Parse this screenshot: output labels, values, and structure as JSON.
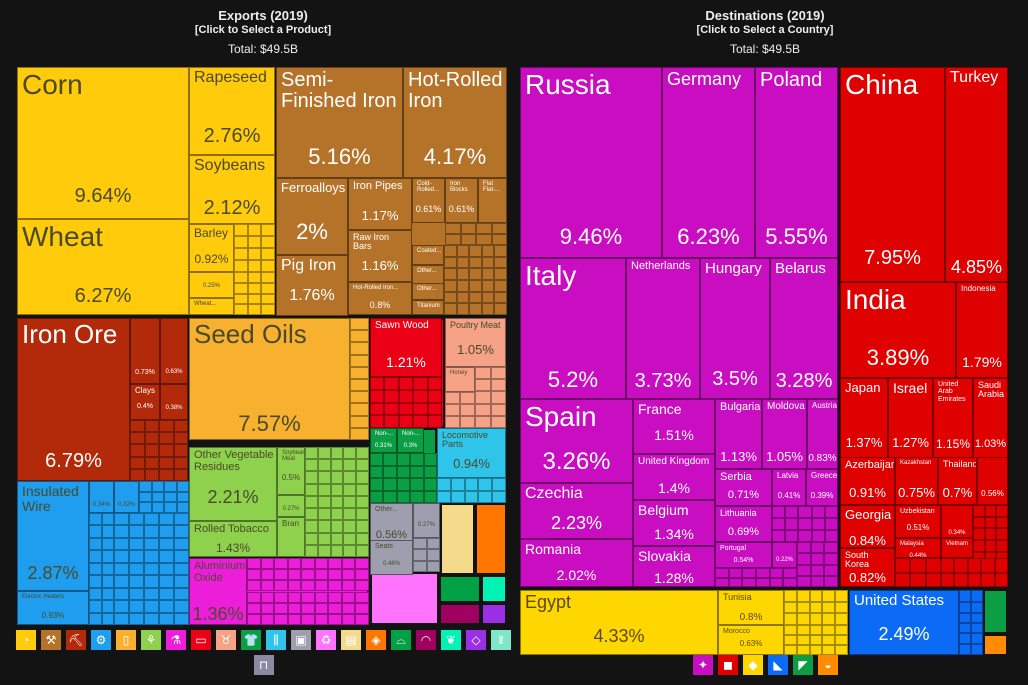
{
  "exports_panel": {
    "title": "Exports (2019)",
    "subtitle": "[Click to Select a Product]",
    "total": "Total: $49.5B"
  },
  "destinations_panel": {
    "title": "Destinations (2019)",
    "subtitle": "[Click to Select a Country]",
    "total": "Total: $49.5B"
  },
  "chart_data": [
    {
      "type": "treemap",
      "title": "Exports (2019)",
      "total": "$49.5B",
      "items": [
        {
          "name": "Corn",
          "value": 9.64,
          "group": "Vegetable Products",
          "color": "#FFCB0A"
        },
        {
          "name": "Wheat",
          "value": 6.27,
          "group": "Vegetable Products",
          "color": "#FFCB0A"
        },
        {
          "name": "Rapeseed",
          "value": 2.76,
          "group": "Vegetable Products",
          "color": "#FFCB0A"
        },
        {
          "name": "Soybeans",
          "value": 2.12,
          "group": "Vegetable Products",
          "color": "#FFCB0A"
        },
        {
          "name": "Barley",
          "value": 0.92,
          "group": "Vegetable Products",
          "color": "#FFCB0A"
        },
        {
          "name": "",
          "value": 0.25,
          "group": "Vegetable Products",
          "color": "#FFCB0A"
        },
        {
          "name": "Wheat...",
          "value": null,
          "group": "Vegetable Products",
          "color": "#FFCB0A"
        },
        {
          "name": "Semi-Finished Iron",
          "value": 5.16,
          "group": "Metals",
          "color": "#B5732A"
        },
        {
          "name": "Hot-Rolled Iron",
          "value": 4.17,
          "group": "Metals",
          "color": "#B5732A"
        },
        {
          "name": "Ferroalloys",
          "value": 2,
          "group": "Metals",
          "color": "#B5732A"
        },
        {
          "name": "Pig Iron",
          "value": 1.76,
          "group": "Metals",
          "color": "#B5732A"
        },
        {
          "name": "Iron Pipes",
          "value": 1.17,
          "group": "Metals",
          "color": "#B5732A"
        },
        {
          "name": "Raw Iron Bars",
          "value": 1.16,
          "group": "Metals",
          "color": "#B5732A"
        },
        {
          "name": "Hot-Rolled Iron...",
          "value": 0.8,
          "group": "Metals",
          "color": "#B5732A"
        },
        {
          "name": "Cold-Rolled...",
          "value": 0.61,
          "group": "Metals",
          "color": "#B5732A"
        },
        {
          "name": "Iron Blocks",
          "value": 0.61,
          "group": "Metals",
          "color": "#B5732A"
        },
        {
          "name": "Flat Flat-...",
          "value": null,
          "group": "Metals",
          "color": "#B5732A"
        },
        {
          "name": "Coated...",
          "value": null,
          "group": "Metals",
          "color": "#B5732A"
        },
        {
          "name": "Other...",
          "value": null,
          "group": "Metals",
          "color": "#B5732A"
        },
        {
          "name": "Other...",
          "value": null,
          "group": "Metals",
          "color": "#B5732A"
        },
        {
          "name": "Titanium",
          "value": null,
          "group": "Metals",
          "color": "#B5732A"
        },
        {
          "name": "Iron Ore",
          "value": 6.79,
          "group": "Mineral Products",
          "color": "#B22A0A"
        },
        {
          "name": "",
          "value": 0.73,
          "group": "Mineral Products",
          "color": "#B22A0A"
        },
        {
          "name": "",
          "value": 0.63,
          "group": "Mineral Products",
          "color": "#B22A0A"
        },
        {
          "name": "Clays",
          "value": 0.4,
          "group": "Mineral Products",
          "color": "#B22A0A"
        },
        {
          "name": "",
          "value": 0.38,
          "group": "Mineral Products",
          "color": "#B22A0A"
        },
        {
          "name": "Seed Oils",
          "value": 7.57,
          "group": "Animal and Vegetable Bi-Products",
          "color": "#F7B12F"
        },
        {
          "name": "Other Vegetable Residues",
          "value": 2.21,
          "group": "Foodstuffs",
          "color": "#8ED14C"
        },
        {
          "name": "Rolled Tobacco",
          "value": 1.43,
          "group": "Foodstuffs",
          "color": "#8ED14C"
        },
        {
          "name": "Soybean Meal",
          "value": 0.5,
          "group": "Foodstuffs",
          "color": "#8ED14C"
        },
        {
          "name": "",
          "value": 0.27,
          "group": "Foodstuffs",
          "color": "#8ED14C"
        },
        {
          "name": "Bran",
          "value": null,
          "group": "Foodstuffs",
          "color": "#8ED14C"
        },
        {
          "name": "Insulated Wire",
          "value": 2.87,
          "group": "Machines",
          "color": "#1F9EF0"
        },
        {
          "name": "Electric Heaters",
          "value": 0.93,
          "group": "Machines",
          "color": "#1F9EF0"
        },
        {
          "name": "",
          "value": 0.34,
          "group": "Machines",
          "color": "#1F9EF0"
        },
        {
          "name": "",
          "value": 0.32,
          "group": "Machines",
          "color": "#1F9EF0"
        },
        {
          "name": "Sawn Wood",
          "value": 1.21,
          "group": "Wood Products",
          "color": "#EC0016"
        },
        {
          "name": "Poultry Meat",
          "value": 1.05,
          "group": "Animal Products",
          "color": "#F6A287"
        },
        {
          "name": "Honey",
          "value": null,
          "group": "Animal Products",
          "color": "#F6A287"
        },
        {
          "name": "Locomotive Parts",
          "value": 0.94,
          "group": "Transportation",
          "color": "#2FC5EB"
        },
        {
          "name": "Non-...",
          "value": 0.31,
          "group": "Textiles",
          "color": "#0B9E45"
        },
        {
          "name": "Non-...",
          "value": 0.3,
          "group": "Textiles",
          "color": "#0B9E45"
        },
        {
          "name": "Aluminium Oxide",
          "value": 1.36,
          "group": "Chemical Products",
          "color": "#ED1ED9"
        },
        {
          "name": "Other...",
          "value": 0.56,
          "group": "Miscellaneous",
          "color": "#9E9EAE"
        },
        {
          "name": "Seats",
          "value": 0.48,
          "group": "Miscellaneous",
          "color": "#9E9EAE"
        },
        {
          "name": "",
          "value": 0.27,
          "group": "Miscellaneous",
          "color": "#9E9EAE"
        }
      ]
    },
    {
      "type": "treemap",
      "title": "Destinations (2019)",
      "total": "$49.5B",
      "items": [
        {
          "name": "Russia",
          "value": 9.46,
          "group": "Europe",
          "color": "#C90DC0"
        },
        {
          "name": "Germany",
          "value": 6.23,
          "group": "Europe",
          "color": "#C90DC0"
        },
        {
          "name": "Poland",
          "value": 5.55,
          "group": "Europe",
          "color": "#C90DC0"
        },
        {
          "name": "Italy",
          "value": 5.2,
          "group": "Europe",
          "color": "#C90DC0"
        },
        {
          "name": "Netherlands",
          "value": 3.73,
          "group": "Europe",
          "color": "#C90DC0"
        },
        {
          "name": "Hungary",
          "value": 3.5,
          "group": "Europe",
          "color": "#C90DC0"
        },
        {
          "name": "Belarus",
          "value": 3.28,
          "group": "Europe",
          "color": "#C90DC0"
        },
        {
          "name": "Spain",
          "value": 3.26,
          "group": "Europe",
          "color": "#C90DC0"
        },
        {
          "name": "Czechia",
          "value": 2.23,
          "group": "Europe",
          "color": "#C90DC0"
        },
        {
          "name": "Romania",
          "value": 2.02,
          "group": "Europe",
          "color": "#C90DC0"
        },
        {
          "name": "France",
          "value": 1.51,
          "group": "Europe",
          "color": "#C90DC0"
        },
        {
          "name": "United Kingdom",
          "value": 1.4,
          "group": "Europe",
          "color": "#C90DC0"
        },
        {
          "name": "Belgium",
          "value": 1.34,
          "group": "Europe",
          "color": "#C90DC0"
        },
        {
          "name": "Slovakia",
          "value": 1.28,
          "group": "Europe",
          "color": "#C90DC0"
        },
        {
          "name": "Bulgaria",
          "value": 1.13,
          "group": "Europe",
          "color": "#C90DC0"
        },
        {
          "name": "Moldova",
          "value": 1.05,
          "group": "Europe",
          "color": "#C90DC0"
        },
        {
          "name": "Austria",
          "value": 0.83,
          "group": "Europe",
          "color": "#C90DC0"
        },
        {
          "name": "Serbia",
          "value": 0.71,
          "group": "Europe",
          "color": "#C90DC0"
        },
        {
          "name": "Latvia",
          "value": 0.41,
          "group": "Europe",
          "color": "#C90DC0"
        },
        {
          "name": "Greece",
          "value": 0.39,
          "group": "Europe",
          "color": "#C90DC0"
        },
        {
          "name": "Lithuania",
          "value": 0.69,
          "group": "Europe",
          "color": "#C90DC0"
        },
        {
          "name": "Portugal",
          "value": 0.54,
          "group": "Europe",
          "color": "#C90DC0"
        },
        {
          "name": "",
          "value": 0.22,
          "group": "Europe",
          "color": "#C90DC0"
        },
        {
          "name": "China",
          "value": 7.95,
          "group": "Asia",
          "color": "#DF0000"
        },
        {
          "name": "Turkey",
          "value": 4.85,
          "group": "Asia",
          "color": "#DF0000"
        },
        {
          "name": "India",
          "value": 3.89,
          "group": "Asia",
          "color": "#DF0000"
        },
        {
          "name": "Indonesia",
          "value": 1.79,
          "group": "Asia",
          "color": "#DF0000"
        },
        {
          "name": "Japan",
          "value": 1.37,
          "group": "Asia",
          "color": "#DF0000"
        },
        {
          "name": "Israel",
          "value": 1.27,
          "group": "Asia",
          "color": "#DF0000"
        },
        {
          "name": "United Arab Emirates",
          "value": 1.15,
          "group": "Asia",
          "color": "#DF0000"
        },
        {
          "name": "Saudi Arabia",
          "value": 1.03,
          "group": "Asia",
          "color": "#DF0000"
        },
        {
          "name": "Azerbaijan",
          "value": 0.91,
          "group": "Asia",
          "color": "#DF0000"
        },
        {
          "name": "Kazakhstan",
          "value": 0.75,
          "group": "Asia",
          "color": "#DF0000"
        },
        {
          "name": "Thailand",
          "value": 0.7,
          "group": "Asia",
          "color": "#DF0000"
        },
        {
          "name": "",
          "value": 0.56,
          "group": "Asia",
          "color": "#DF0000"
        },
        {
          "name": "Georgia",
          "value": 0.84,
          "group": "Asia",
          "color": "#DF0000"
        },
        {
          "name": "Uzbekistan",
          "value": 0.51,
          "group": "Asia",
          "color": "#DF0000"
        },
        {
          "name": "",
          "value": 0.34,
          "group": "Asia",
          "color": "#DF0000"
        },
        {
          "name": "South Korea",
          "value": 0.82,
          "group": "Asia",
          "color": "#DF0000"
        },
        {
          "name": "Malaysia",
          "value": 0.44,
          "group": "Asia",
          "color": "#DF0000"
        },
        {
          "name": "Vietnam",
          "value": null,
          "group": "Asia",
          "color": "#DF0000"
        },
        {
          "name": "Egypt",
          "value": 4.33,
          "group": "Africa",
          "color": "#FFD700"
        },
        {
          "name": "Tunisia",
          "value": 0.8,
          "group": "Africa",
          "color": "#FFD700"
        },
        {
          "name": "Morocco",
          "value": 0.63,
          "group": "Africa",
          "color": "#FFD700"
        },
        {
          "name": "United States",
          "value": 2.49,
          "group": "North America",
          "color": "#0B6BF5"
        }
      ]
    }
  ],
  "export_legend": [
    {
      "icon": "vegetable-products-icon",
      "glyph": "◔",
      "color": "#FFCB0A"
    },
    {
      "icon": "metals-icon",
      "glyph": "⚒",
      "color": "#B5732A"
    },
    {
      "icon": "mineral-products-icon",
      "glyph": "⛏",
      "color": "#B22A0A"
    },
    {
      "icon": "machines-icon",
      "glyph": "⚙",
      "color": "#1F9EF0"
    },
    {
      "icon": "animal-veg-byproducts-icon",
      "glyph": "▯",
      "color": "#F7B12F"
    },
    {
      "icon": "foodstuffs-icon",
      "glyph": "⚘",
      "color": "#8ED14C"
    },
    {
      "icon": "chemical-products-icon",
      "glyph": "⚗",
      "color": "#ED1ED9"
    },
    {
      "icon": "wood-products-icon",
      "glyph": "▭",
      "color": "#EC0016"
    },
    {
      "icon": "animal-products-icon",
      "glyph": "♉",
      "color": "#F6A287"
    },
    {
      "icon": "textiles-icon",
      "glyph": "👕",
      "color": "#0B9E45"
    },
    {
      "icon": "transportation-icon",
      "glyph": "⫼",
      "color": "#2FC5EB"
    },
    {
      "icon": "miscellaneous-icon",
      "glyph": "▣",
      "color": "#9E9EAE"
    },
    {
      "icon": "plastics-rubbers-icon",
      "glyph": "♻",
      "color": "#FF73FF"
    },
    {
      "icon": "paper-goods-icon",
      "glyph": "▤",
      "color": "#F4DB8B"
    },
    {
      "icon": "stone-glass-icon",
      "glyph": "◈",
      "color": "#FF7600"
    },
    {
      "icon": "footwear-headwear-icon",
      "glyph": "⌓",
      "color": "#00A045"
    },
    {
      "icon": "instruments-icon",
      "glyph": "◠",
      "color": "#A0005F"
    },
    {
      "icon": "animal-hides-icon",
      "glyph": "❦",
      "color": "#00F2B4"
    },
    {
      "icon": "precious-metals-icon",
      "glyph": "◇",
      "color": "#9B2FE6"
    },
    {
      "icon": "weapons-icon",
      "glyph": "‖",
      "color": "#7FE7C8"
    },
    {
      "icon": "arts-antiques-icon",
      "glyph": "⊓",
      "color": "#8A8AA0"
    }
  ],
  "destination_legend": [
    {
      "icon": "europe-icon",
      "glyph": "✦",
      "color": "#C90DC0"
    },
    {
      "icon": "asia-icon",
      "glyph": "◼",
      "color": "#DF0000"
    },
    {
      "icon": "africa-icon",
      "glyph": "◆",
      "color": "#FFD700"
    },
    {
      "icon": "north-america-icon",
      "glyph": "◣",
      "color": "#0B6BF5"
    },
    {
      "icon": "south-america-icon",
      "glyph": "◤",
      "color": "#0B9E45"
    },
    {
      "icon": "oceania-icon",
      "glyph": "◒",
      "color": "#FF8C00"
    }
  ]
}
